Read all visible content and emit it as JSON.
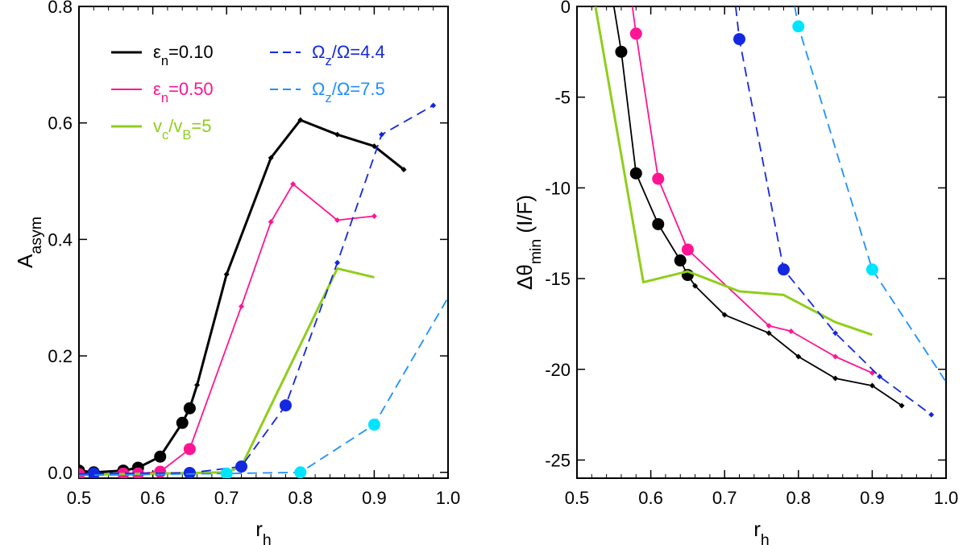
{
  "colors": {
    "black": "#000000",
    "magenta": "#ff1493",
    "green": "#8fce1b",
    "blue": "#1428e0",
    "lightblue": "#1e90ff",
    "cyan": "#00e5ff"
  },
  "legend": [
    {
      "key": "eps010",
      "main": "ε",
      "sub": "n",
      "rest": "=0.10",
      "color": "black",
      "dash": false
    },
    {
      "key": "eps050",
      "main": "ε",
      "sub": "n",
      "rest": "=0.50",
      "color": "magenta",
      "dash": false
    },
    {
      "key": "vc",
      "main": "v",
      "sub": "c",
      "rest": "/v",
      "sub2": "B",
      "rest2": "=5",
      "color": "green",
      "dash": false
    },
    {
      "key": "oz44",
      "main": "Ω",
      "sub": "z",
      "rest": "/Ω=4.4",
      "color": "blue",
      "dash": true
    },
    {
      "key": "oz75",
      "main": "Ω",
      "sub": "z",
      "rest": "/Ω=7.5",
      "color": "lightblue",
      "dash": true
    }
  ],
  "chart_data": [
    {
      "type": "line",
      "panel": "left",
      "xlabel": {
        "main": "r",
        "sub": "h"
      },
      "ylabel": {
        "main": "A",
        "sub": "asym"
      },
      "xlim": [
        0.5,
        1.0
      ],
      "ylim": [
        -0.01,
        0.8
      ],
      "xticks": [
        "0.5",
        "0.6",
        "0.7",
        "0.8",
        "0.9",
        "1.0"
      ],
      "xtick_values": [
        0.5,
        0.6,
        0.7,
        0.8,
        0.9,
        1.0
      ],
      "yticks": [
        "0.0",
        "0.2",
        "0.4",
        "0.6",
        "0.8"
      ],
      "ytick_values": [
        0.0,
        0.2,
        0.4,
        0.6,
        0.8
      ],
      "series": [
        {
          "name": "ε_n=0.10",
          "color": "black",
          "width": 3,
          "dash": false,
          "x": [
            0.5,
            0.52,
            0.56,
            0.58,
            0.61,
            0.64,
            0.65,
            0.66,
            0.7,
            0.76,
            0.8,
            0.85,
            0.9,
            0.94
          ],
          "y": [
            0.003,
            0.0,
            0.003,
            0.008,
            0.027,
            0.085,
            0.11,
            0.15,
            0.34,
            0.54,
            0.605,
            0.58,
            0.56,
            0.52
          ],
          "markers": [
            "circle",
            "circle",
            "circle",
            "circle",
            "circle",
            "circle",
            "circle",
            "diamond",
            "diamond",
            "diamond",
            "diamond",
            "diamond",
            "diamond",
            "diamond"
          ]
        },
        {
          "name": "ε_n=0.50",
          "color": "magenta",
          "width": 1.8,
          "dash": false,
          "x": [
            0.5,
            0.56,
            0.58,
            0.61,
            0.65,
            0.72,
            0.76,
            0.79,
            0.85,
            0.9
          ],
          "y": [
            -0.003,
            -0.002,
            -0.002,
            0.001,
            0.04,
            0.285,
            0.43,
            0.495,
            0.433,
            0.44
          ],
          "markers": [
            "circle",
            "circle",
            "circle",
            "circle",
            "circle",
            "diamond",
            "diamond",
            "diamond",
            "diamond",
            "diamond"
          ]
        },
        {
          "name": "v_c/v_B=5",
          "color": "green",
          "width": 3,
          "dash": false,
          "x": [
            0.5,
            0.7,
            0.72,
            0.85,
            0.9
          ],
          "y": [
            -0.004,
            0.0,
            0.01,
            0.35,
            0.335
          ],
          "markers": [
            "none",
            "none",
            "none",
            "none",
            "none"
          ]
        },
        {
          "name": "Ω_z/Ω=4.4",
          "color": "blue",
          "width": 1.8,
          "dash": true,
          "x": [
            0.5,
            0.52,
            0.65,
            0.72,
            0.78,
            0.85,
            0.91,
            0.98
          ],
          "y": [
            -0.003,
            -0.002,
            -0.001,
            0.01,
            0.115,
            0.36,
            0.58,
            0.63
          ],
          "markers": [
            "none",
            "circle",
            "circle",
            "circle",
            "circle",
            "diamond",
            "diamond",
            "diamond"
          ]
        },
        {
          "name": "Ω_z/Ω=7.5",
          "color": "lightblue",
          "width": 1.8,
          "dash": true,
          "x": [
            0.5,
            0.7,
            0.8,
            0.9,
            1.0
          ],
          "y": [
            -0.005,
            -0.002,
            0.0,
            0.082,
            0.3
          ],
          "markers": [
            "none",
            "circle-cyan",
            "circle-cyan",
            "circle-cyan",
            "none"
          ]
        }
      ]
    },
    {
      "type": "line",
      "panel": "right",
      "xlabel": {
        "main": "r",
        "sub": "h"
      },
      "ylabel": {
        "main": "Δθ",
        "sub": "min",
        "rest": " (I/F)"
      },
      "xlim": [
        0.5,
        1.0
      ],
      "ylim": [
        -26,
        0
      ],
      "xticks": [
        "0.5",
        "0.6",
        "0.7",
        "0.8",
        "0.9",
        "1.0"
      ],
      "xtick_values": [
        0.5,
        0.6,
        0.7,
        0.8,
        0.9,
        1.0
      ],
      "yticks": [
        "0",
        "-5",
        "-10",
        "-15",
        "-20",
        "-25"
      ],
      "ytick_values": [
        0,
        -5,
        -10,
        -15,
        -20,
        -25
      ],
      "series": [
        {
          "name": "ε_n=0.10",
          "color": "black",
          "width": 1.8,
          "dash": false,
          "x": [
            0.55,
            0.56,
            0.58,
            0.61,
            0.64,
            0.65,
            0.66,
            0.7,
            0.76,
            0.8,
            0.85,
            0.9,
            0.94
          ],
          "y": [
            0.0,
            -2.5,
            -9.2,
            -12.0,
            -14.0,
            -14.8,
            -15.4,
            -17.0,
            -18.0,
            -19.3,
            -20.5,
            -20.9,
            -22.0
          ],
          "markers": [
            "none",
            "circle",
            "circle",
            "circle",
            "circle",
            "circle",
            "diamond",
            "diamond",
            "diamond",
            "diamond",
            "diamond",
            "diamond",
            "diamond"
          ]
        },
        {
          "name": "ε_n=0.50",
          "color": "magenta",
          "width": 1.8,
          "dash": false,
          "x": [
            0.575,
            0.58,
            0.61,
            0.65,
            0.76,
            0.79,
            0.85,
            0.9
          ],
          "y": [
            0.0,
            -1.5,
            -9.5,
            -13.4,
            -17.6,
            -17.9,
            -19.3,
            -20.2
          ],
          "markers": [
            "none",
            "circle",
            "circle",
            "circle",
            "diamond",
            "diamond",
            "diamond",
            "diamond"
          ]
        },
        {
          "name": "v_c/v_B=5",
          "color": "green",
          "width": 3,
          "dash": false,
          "x": [
            0.525,
            0.59,
            0.65,
            0.72,
            0.78,
            0.85,
            0.9
          ],
          "y": [
            0.0,
            -15.2,
            -14.6,
            -15.7,
            -15.9,
            -17.4,
            -18.1
          ],
          "markers": [
            "none",
            "none",
            "none",
            "none",
            "none",
            "none",
            "none"
          ]
        },
        {
          "name": "Ω_z/Ω=4.4",
          "color": "blue",
          "width": 1.8,
          "dash": true,
          "x": [
            0.715,
            0.72,
            0.78,
            0.85,
            0.91,
            0.98
          ],
          "y": [
            0.0,
            -1.8,
            -14.5,
            -18.0,
            -20.4,
            -22.5
          ],
          "markers": [
            "none",
            "circle",
            "circle",
            "diamond",
            "diamond",
            "diamond"
          ]
        },
        {
          "name": "Ω_z/Ω=7.5",
          "color": "lightblue",
          "width": 1.8,
          "dash": true,
          "x": [
            0.795,
            0.8,
            0.9,
            1.0
          ],
          "y": [
            0.0,
            -1.1,
            -14.5,
            -20.7
          ],
          "markers": [
            "none",
            "circle-cyan",
            "circle-cyan",
            "none"
          ]
        }
      ]
    }
  ]
}
